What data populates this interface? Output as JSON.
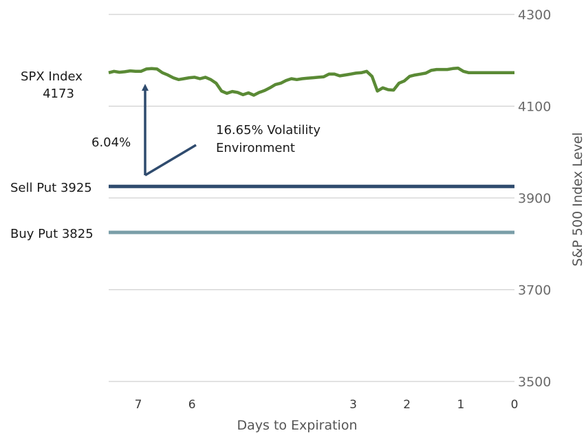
{
  "chart_data": {
    "type": "line",
    "xlabel": "Days to Expiration",
    "ylabel": "S&P 500 Index Level",
    "xlim": [
      7.55,
      0
    ],
    "ylim": [
      3500,
      4300
    ],
    "x_ticks": [
      7,
      6,
      5,
      4,
      3,
      2,
      1,
      0
    ],
    "x_tick_labels": [
      "7",
      "6",
      "",
      "",
      "3",
      "2",
      "1",
      "0"
    ],
    "y_ticks": [
      3500,
      3700,
      3900,
      4100,
      4300
    ],
    "y_tick_labels": [
      "3500",
      "3700",
      "3900",
      "4100",
      "4300"
    ],
    "grid": true,
    "colors": {
      "spx": "#5a8a35",
      "sell_put": "#2f4b6e",
      "buy_put": "#7a9ea8",
      "arrow": "#2f4b6e"
    },
    "series": [
      {
        "key": "spx",
        "x": [
          7.55,
          7.45,
          7.35,
          7.25,
          7.15,
          7.05,
          6.95,
          6.85,
          6.75,
          6.65,
          6.55,
          6.45,
          6.35,
          6.25,
          6.15,
          6.05,
          5.95,
          5.85,
          5.75,
          5.65,
          5.55,
          5.45,
          5.35,
          5.25,
          5.15,
          5.05,
          4.95,
          4.85,
          4.75,
          4.65,
          4.55,
          4.45,
          4.35,
          4.25,
          4.15,
          4.05,
          3.95,
          3.85,
          3.75,
          3.65,
          3.55,
          3.45,
          3.35,
          3.25,
          3.15,
          3.05,
          2.95,
          2.85,
          2.75,
          2.65,
          2.55,
          2.45,
          2.35,
          2.25,
          2.15,
          2.05,
          1.95,
          1.85,
          1.75,
          1.65,
          1.55,
          1.45,
          1.35,
          1.25,
          1.15,
          1.05,
          0.95,
          0.85,
          0.75,
          0.65,
          0.55,
          0.45,
          0.35,
          0.25,
          0.15,
          0.05,
          0
        ],
        "y": [
          4173,
          4176,
          4174,
          4175,
          4177,
          4176,
          4176,
          4181,
          4182,
          4181,
          4173,
          4168,
          4162,
          4158,
          4160,
          4162,
          4163,
          4160,
          4163,
          4158,
          4150,
          4133,
          4128,
          4132,
          4130,
          4125,
          4129,
          4124,
          4130,
          4134,
          4140,
          4147,
          4150,
          4156,
          4160,
          4158,
          4160,
          4161,
          4162,
          4163,
          4164,
          4170,
          4170,
          4166,
          4168,
          4170,
          4172,
          4173,
          4176,
          4165,
          4133,
          4140,
          4136,
          4135,
          4150,
          4155,
          4165,
          4168,
          4170,
          4172,
          4178,
          4180,
          4180,
          4180,
          4182,
          4183,
          4176,
          4173,
          4173,
          4173,
          4173,
          4173,
          4173,
          4173,
          4173,
          4173,
          4173
        ]
      },
      {
        "key": "sell_put",
        "x": [
          7.55,
          0
        ],
        "y": [
          3925,
          3925
        ]
      },
      {
        "key": "buy_put",
        "x": [
          7.55,
          0
        ],
        "y": [
          3825,
          3825
        ]
      }
    ],
    "annotations": {
      "spx_label": "SPX Index",
      "spx_value": "4173",
      "move_pct": "6.04%",
      "vol_line1": "16.65% Volatility",
      "vol_line2": "Environment",
      "sell_put": "Sell Put 3925",
      "buy_put": "Buy Put 3825"
    }
  }
}
